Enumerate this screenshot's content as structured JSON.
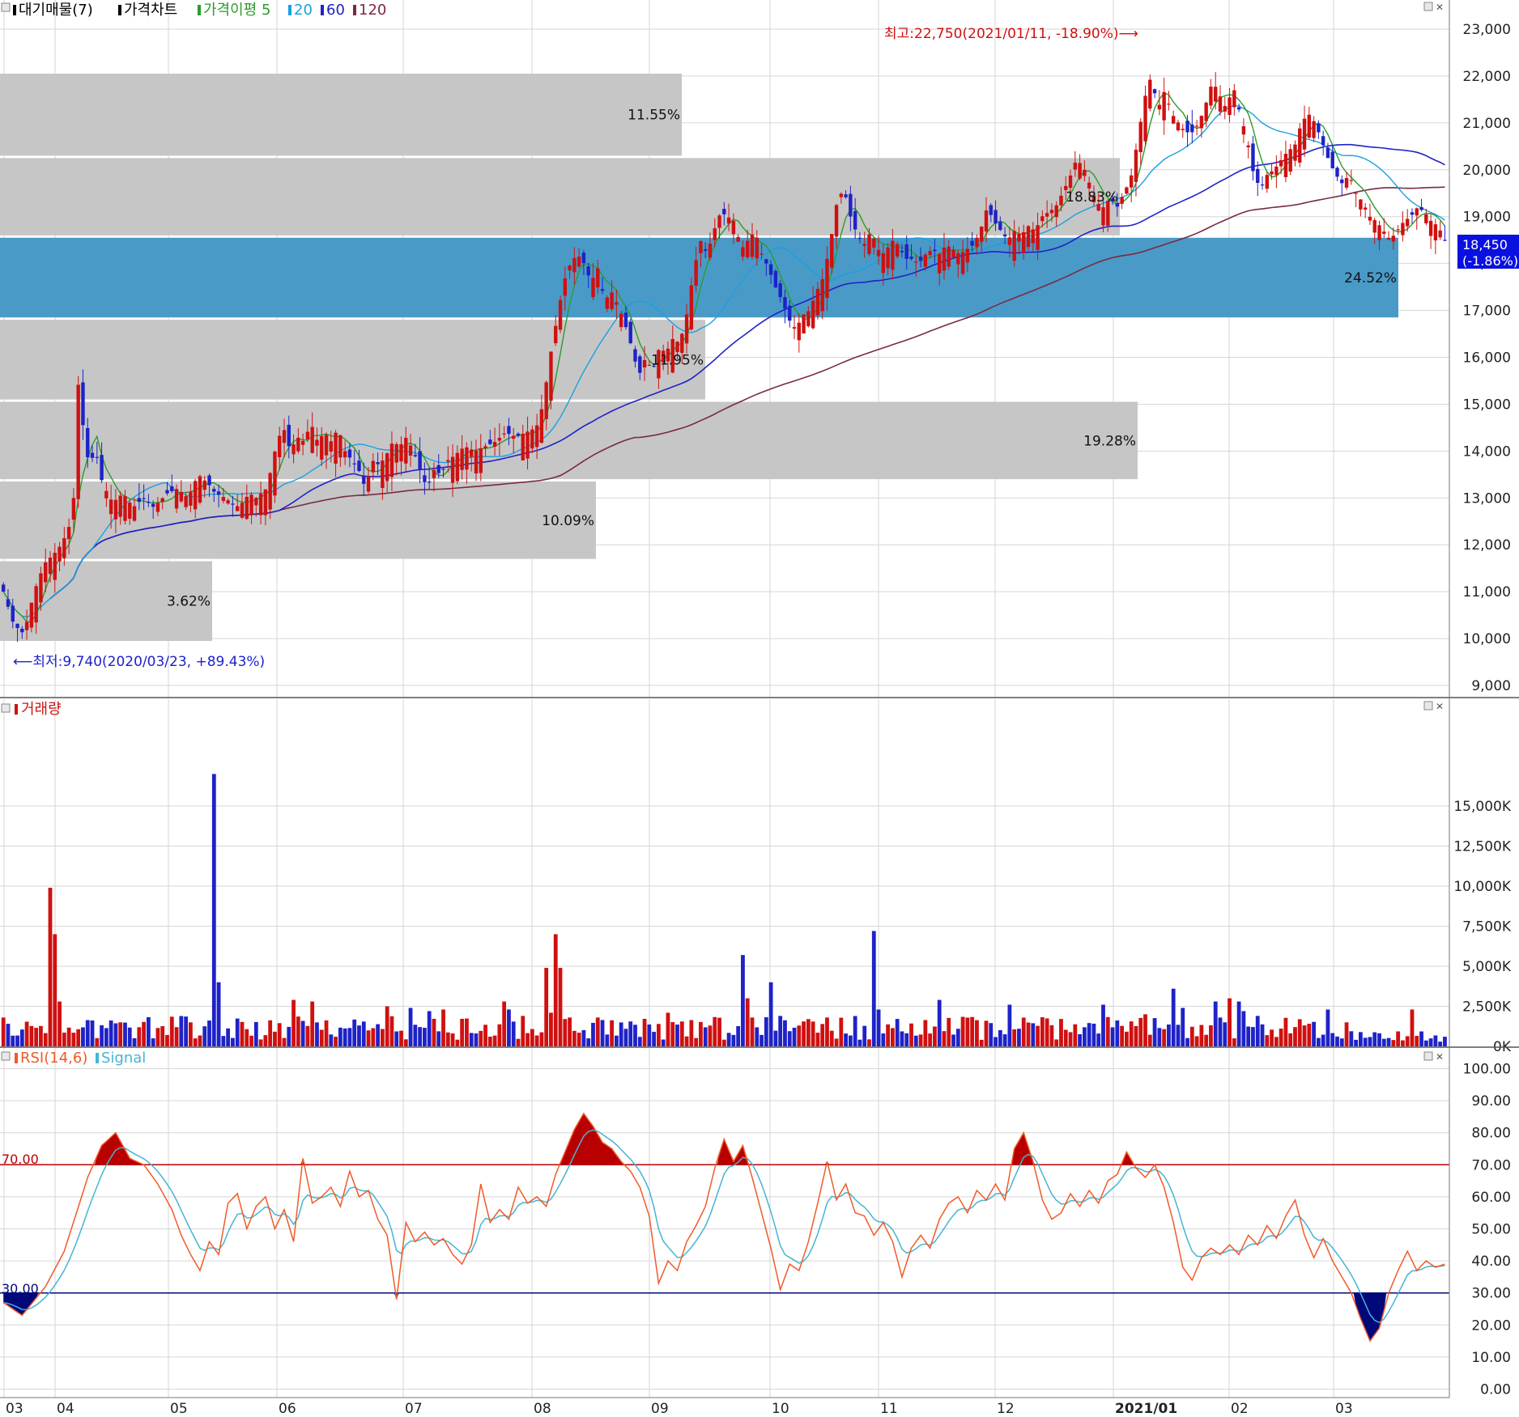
{
  "legend": {
    "price_panel": [
      {
        "label": "대기매물(7)",
        "color": "#000000"
      },
      {
        "label": "가격차트",
        "color": "#000000"
      },
      {
        "label": "가격이평 5",
        "color": "#2a9d2a"
      },
      {
        "label": "20",
        "color": "#1aa0e0"
      },
      {
        "label": "60",
        "color": "#1e22c8"
      },
      {
        "label": "120",
        "color": "#7a2a40"
      }
    ],
    "volume_panel": [
      {
        "label": "거래량",
        "color": "#d01010"
      }
    ],
    "rsi_panel": [
      {
        "label": "RSI(14,6)",
        "color": "#f05a28"
      },
      {
        "label": "Signal",
        "color": "#46b4d2"
      }
    ]
  },
  "annotations": {
    "high": "최고:22,750(2021/01/11, -18.90%)⟶",
    "low": "⟵최저:9,740(2020/03/23, +89.43%)",
    "current_price": "18,450",
    "current_change": "(-1.86%)",
    "rsi_upper_level": "70.00",
    "rsi_lower_level": "30.00"
  },
  "colors": {
    "up": "#d01010",
    "down": "#1e22c8",
    "ma5": "#2a9d2a",
    "ma20": "#1aa0e0",
    "ma60": "#1e22c8",
    "ma120": "#7a2a40",
    "supply_box": "#c6c6c6",
    "supply_box_current": "#4a9ac8",
    "rsi": "#f05a28",
    "signal": "#46b4d2",
    "rsi_over": "#b80000",
    "rsi_under": "#00087a",
    "grid": "#d6d6d6"
  },
  "chart_data": [
    {
      "type": "candlestick",
      "title": "가격차트",
      "ylim": [
        9000,
        23000
      ],
      "y_ticks": [
        "23,000",
        "22,000",
        "21,000",
        "20,000",
        "19,000",
        "18,000",
        "17,000",
        "16,000",
        "15,000",
        "14,000",
        "13,000",
        "12,000",
        "11,000",
        "10,000",
        "9,000"
      ],
      "x_ticks": [
        "03",
        "04",
        "05",
        "06",
        "07",
        "08",
        "09",
        "10",
        "11",
        "12",
        "2021/01",
        "02",
        "03"
      ],
      "supply_zones": [
        {
          "low": 20300,
          "high": 22050,
          "percent": "11.55%",
          "current": false
        },
        {
          "low": 18600,
          "high": 20250,
          "percent": "18.83%",
          "current": false
        },
        {
          "low": 16850,
          "high": 18550,
          "percent": "24.52%",
          "current": true
        },
        {
          "low": 15100,
          "high": 16800,
          "percent": "11.95%",
          "current": false
        },
        {
          "low": 13400,
          "high": 15050,
          "percent": "19.28%",
          "current": false
        },
        {
          "low": 11700,
          "high": 13350,
          "percent": "10.09%",
          "current": false
        },
        {
          "low": 9950,
          "high": 11650,
          "percent": "3.62%",
          "current": false
        }
      ],
      "high": {
        "value": 22750,
        "date": "2021/01/11"
      },
      "low": {
        "value": 9740,
        "date": "2020/03/23"
      },
      "last_close": 18450
    },
    {
      "type": "bar",
      "title": "거래량",
      "unit": "K",
      "ylim": [
        0,
        17500
      ],
      "y_ticks": [
        "15,000K",
        "12,500K",
        "10,000K",
        "7,500K",
        "5,000K",
        "2,500K",
        "0K"
      ]
    },
    {
      "type": "line",
      "title": "RSI(14,6)",
      "series_names": [
        "RSI(14,6)",
        "Signal"
      ],
      "ylim": [
        0,
        100
      ],
      "y_ticks": [
        "100.00",
        "90.00",
        "80.00",
        "70.00",
        "60.00",
        "50.00",
        "40.00",
        "30.00",
        "20.00",
        "10.00",
        "0.00"
      ],
      "levels": [
        70,
        30
      ],
      "anchors": [
        [
          0,
          27
        ],
        [
          4,
          23
        ],
        [
          9,
          32
        ],
        [
          13,
          43
        ],
        [
          18,
          66
        ],
        [
          21,
          76
        ],
        [
          24,
          80
        ],
        [
          27,
          72
        ],
        [
          30,
          70
        ],
        [
          33,
          64
        ],
        [
          36,
          56
        ],
        [
          38,
          48
        ],
        [
          40,
          42
        ],
        [
          42,
          37
        ],
        [
          44,
          46
        ],
        [
          46,
          42
        ],
        [
          48,
          58
        ],
        [
          50,
          61
        ],
        [
          52,
          50
        ],
        [
          54,
          57
        ],
        [
          56,
          60
        ],
        [
          58,
          50
        ],
        [
          60,
          56
        ],
        [
          62,
          46
        ],
        [
          64,
          72
        ],
        [
          66,
          58
        ],
        [
          68,
          60
        ],
        [
          70,
          63
        ],
        [
          72,
          57
        ],
        [
          74,
          68
        ],
        [
          76,
          60
        ],
        [
          78,
          62
        ],
        [
          80,
          53
        ],
        [
          82,
          48
        ],
        [
          84,
          28
        ],
        [
          86,
          52
        ],
        [
          88,
          46
        ],
        [
          90,
          49
        ],
        [
          92,
          45
        ],
        [
          94,
          47
        ],
        [
          96,
          42
        ],
        [
          98,
          39
        ],
        [
          100,
          45
        ],
        [
          102,
          64
        ],
        [
          104,
          52
        ],
        [
          106,
          56
        ],
        [
          108,
          53
        ],
        [
          110,
          63
        ],
        [
          112,
          58
        ],
        [
          114,
          60
        ],
        [
          116,
          57
        ],
        [
          118,
          67
        ],
        [
          120,
          74
        ],
        [
          122,
          81
        ],
        [
          124,
          86
        ],
        [
          126,
          82
        ],
        [
          128,
          77
        ],
        [
          130,
          75
        ],
        [
          132,
          71
        ],
        [
          134,
          68
        ],
        [
          136,
          63
        ],
        [
          138,
          54
        ],
        [
          140,
          33
        ],
        [
          142,
          40
        ],
        [
          144,
          37
        ],
        [
          146,
          46
        ],
        [
          148,
          51
        ],
        [
          150,
          57
        ],
        [
          152,
          69
        ],
        [
          154,
          78
        ],
        [
          156,
          71
        ],
        [
          158,
          76
        ],
        [
          160,
          66
        ],
        [
          162,
          55
        ],
        [
          164,
          44
        ],
        [
          166,
          31
        ],
        [
          168,
          39
        ],
        [
          170,
          37
        ],
        [
          172,
          46
        ],
        [
          174,
          58
        ],
        [
          176,
          71
        ],
        [
          178,
          59
        ],
        [
          180,
          64
        ],
        [
          182,
          55
        ],
        [
          184,
          54
        ],
        [
          186,
          48
        ],
        [
          188,
          52
        ],
        [
          190,
          46
        ],
        [
          192,
          35
        ],
        [
          194,
          44
        ],
        [
          196,
          48
        ],
        [
          198,
          44
        ],
        [
          200,
          53
        ],
        [
          202,
          58
        ],
        [
          204,
          60
        ],
        [
          206,
          55
        ],
        [
          208,
          62
        ],
        [
          210,
          59
        ],
        [
          212,
          64
        ],
        [
          214,
          59
        ],
        [
          216,
          75
        ],
        [
          218,
          80
        ],
        [
          220,
          71
        ],
        [
          222,
          59
        ],
        [
          224,
          53
        ],
        [
          226,
          55
        ],
        [
          228,
          61
        ],
        [
          230,
          57
        ],
        [
          232,
          62
        ],
        [
          234,
          58
        ],
        [
          236,
          65
        ],
        [
          238,
          67
        ],
        [
          240,
          74
        ],
        [
          242,
          69
        ],
        [
          244,
          66
        ],
        [
          246,
          70
        ],
        [
          248,
          63
        ],
        [
          250,
          52
        ],
        [
          252,
          38
        ],
        [
          254,
          34
        ],
        [
          256,
          41
        ],
        [
          258,
          44
        ],
        [
          260,
          42
        ],
        [
          262,
          45
        ],
        [
          264,
          42
        ],
        [
          266,
          48
        ],
        [
          268,
          45
        ],
        [
          270,
          51
        ],
        [
          272,
          47
        ],
        [
          274,
          54
        ],
        [
          276,
          59
        ],
        [
          278,
          48
        ],
        [
          280,
          41
        ],
        [
          282,
          47
        ],
        [
          284,
          40
        ],
        [
          286,
          35
        ],
        [
          288,
          30
        ],
        [
          290,
          22
        ],
        [
          292,
          15
        ],
        [
          294,
          19
        ],
        [
          296,
          30
        ],
        [
          298,
          37
        ],
        [
          300,
          43
        ],
        [
          302,
          37
        ],
        [
          304,
          40
        ],
        [
          306,
          38
        ],
        [
          308,
          39
        ]
      ]
    }
  ]
}
